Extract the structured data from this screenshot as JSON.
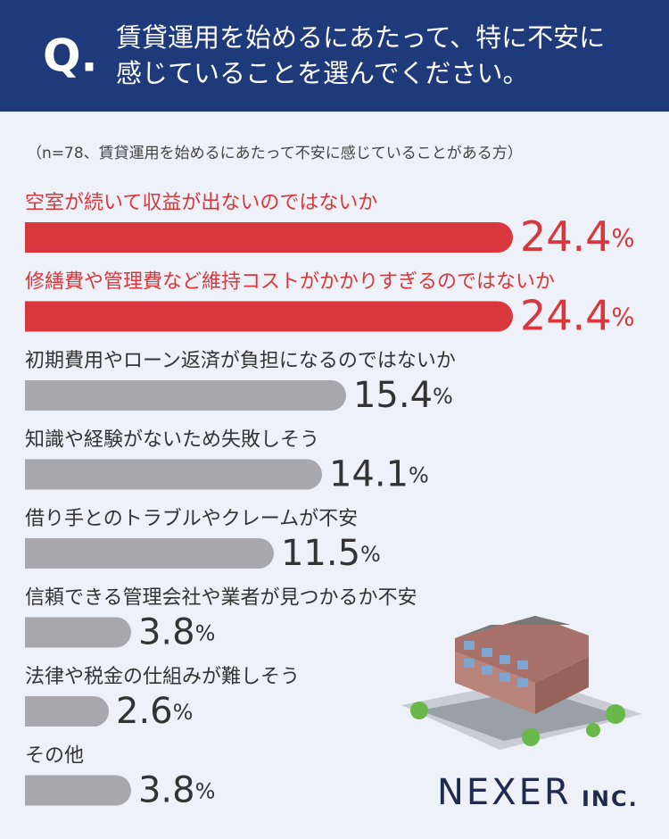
{
  "chart_data": {
    "type": "bar",
    "orientation": "horizontal",
    "q_mark": "Q.",
    "title_lines": [
      "賃貸運用を始めるにあたって、特に不安に",
      "感じていることを選んでください。"
    ],
    "subtitle": "（n=78、賃貸運用を始めるにあたって不安に感じていることがある方）",
    "categories": [
      "空室が続いて収益が出ないのではないか",
      "修繕費や管理費など維持コストがかかりすぎるのではないか",
      "初期費用やローン返済が負担になるのではないか",
      "知識や経験がないため失敗しそう",
      "借り手とのトラブルやクレームが不安",
      "信頼できる管理会社や業者が見つかるか不安",
      "法律や税金の仕組みが難しそう",
      "その他"
    ],
    "values": [
      24.4,
      24.4,
      15.4,
      14.1,
      11.5,
      3.8,
      2.6,
      3.8
    ],
    "value_labels": [
      "24.4%",
      "24.4%",
      "15.4%",
      "14.1%",
      "11.5%",
      "3.8%",
      "2.6%",
      "3.8%"
    ],
    "colors": [
      "#d7373d",
      "#d7373d",
      "#a7a7ac",
      "#a7a7ac",
      "#a7a7ac",
      "#a7a7ac",
      "#a7a7ac",
      "#a7a7ac"
    ],
    "label_colors": [
      "#d7373d",
      "#d7373d",
      "#333333",
      "#333333",
      "#333333",
      "#333333",
      "#333333",
      "#333333"
    ],
    "brand": "NEXER",
    "brand_suffix": "INC."
  }
}
